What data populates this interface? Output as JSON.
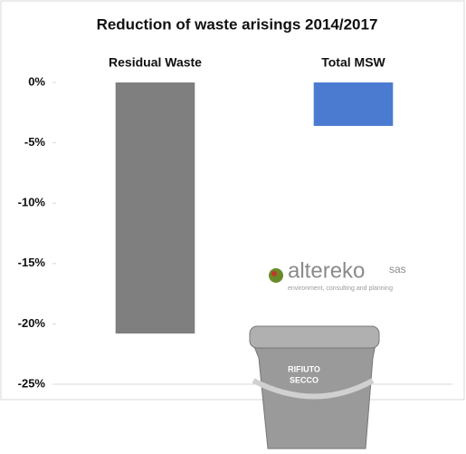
{
  "chart_data": {
    "type": "bar",
    "title": "Reduction of waste arisings 2014/2017",
    "categories": [
      "Residual Waste",
      "Total MSW"
    ],
    "series": [
      {
        "name": null,
        "colors": [
          "#7f7f7f",
          "#4a7bd0"
        ],
        "values": [
          -20.8,
          -3.6
        ]
      }
    ],
    "ylim": [
      -25,
      0
    ],
    "yticks": [
      {
        "value": 0,
        "label": "0%"
      },
      {
        "value": -5,
        "label": "-5%"
      },
      {
        "value": -10,
        "label": "-10%"
      },
      {
        "value": -15,
        "label": "-15%"
      },
      {
        "value": -20,
        "label": "-20%"
      },
      {
        "value": -25,
        "label": "-25%"
      }
    ],
    "grid": false
  },
  "logo": {
    "name": "altereko",
    "suffix": "sas",
    "tagline": "environment, consulting and planning"
  },
  "bin_label": [
    "RIFIUTO",
    "SECCO"
  ]
}
